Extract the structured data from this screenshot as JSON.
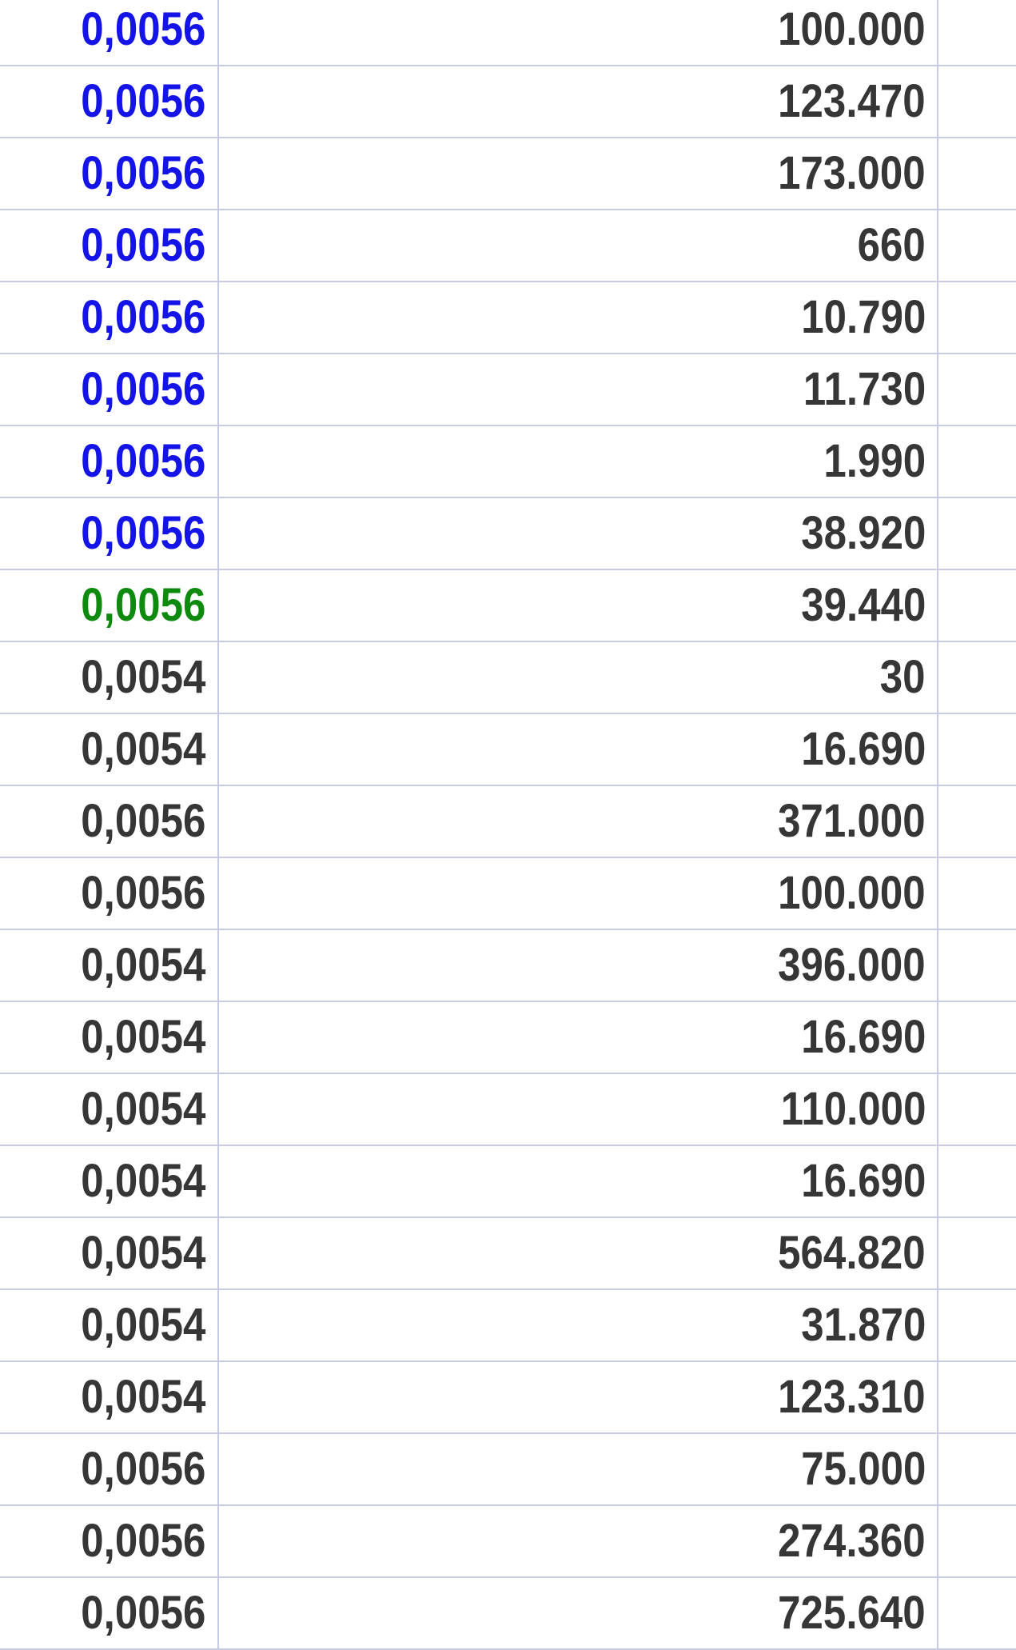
{
  "table": {
    "rows": [
      {
        "price": "0,0056",
        "volume": "100.000",
        "price_color": "blue"
      },
      {
        "price": "0,0056",
        "volume": "123.470",
        "price_color": "blue"
      },
      {
        "price": "0,0056",
        "volume": "173.000",
        "price_color": "blue"
      },
      {
        "price": "0,0056",
        "volume": "660",
        "price_color": "blue"
      },
      {
        "price": "0,0056",
        "volume": "10.790",
        "price_color": "blue"
      },
      {
        "price": "0,0056",
        "volume": "11.730",
        "price_color": "blue"
      },
      {
        "price": "0,0056",
        "volume": "1.990",
        "price_color": "blue"
      },
      {
        "price": "0,0056",
        "volume": "38.920",
        "price_color": "blue"
      },
      {
        "price": "0,0056",
        "volume": "39.440",
        "price_color": "green"
      },
      {
        "price": "0,0054",
        "volume": "30",
        "price_color": "default"
      },
      {
        "price": "0,0054",
        "volume": "16.690",
        "price_color": "default"
      },
      {
        "price": "0,0056",
        "volume": "371.000",
        "price_color": "default"
      },
      {
        "price": "0,0056",
        "volume": "100.000",
        "price_color": "default"
      },
      {
        "price": "0,0054",
        "volume": "396.000",
        "price_color": "default"
      },
      {
        "price": "0,0054",
        "volume": "16.690",
        "price_color": "default"
      },
      {
        "price": "0,0054",
        "volume": "110.000",
        "price_color": "default"
      },
      {
        "price": "0,0054",
        "volume": "16.690",
        "price_color": "default"
      },
      {
        "price": "0,0054",
        "volume": "564.820",
        "price_color": "default"
      },
      {
        "price": "0,0054",
        "volume": "31.870",
        "price_color": "default"
      },
      {
        "price": "0,0054",
        "volume": "123.310",
        "price_color": "default"
      },
      {
        "price": "0,0056",
        "volume": "75.000",
        "price_color": "default"
      },
      {
        "price": "0,0056",
        "volume": "274.360",
        "price_color": "default"
      },
      {
        "price": "0,0056",
        "volume": "725.640",
        "price_color": "default"
      }
    ]
  },
  "colors": {
    "price_blue": "#1414e8",
    "price_green": "#0e8b0e",
    "text_default": "#363636",
    "grid_border": "#c7cce4"
  }
}
